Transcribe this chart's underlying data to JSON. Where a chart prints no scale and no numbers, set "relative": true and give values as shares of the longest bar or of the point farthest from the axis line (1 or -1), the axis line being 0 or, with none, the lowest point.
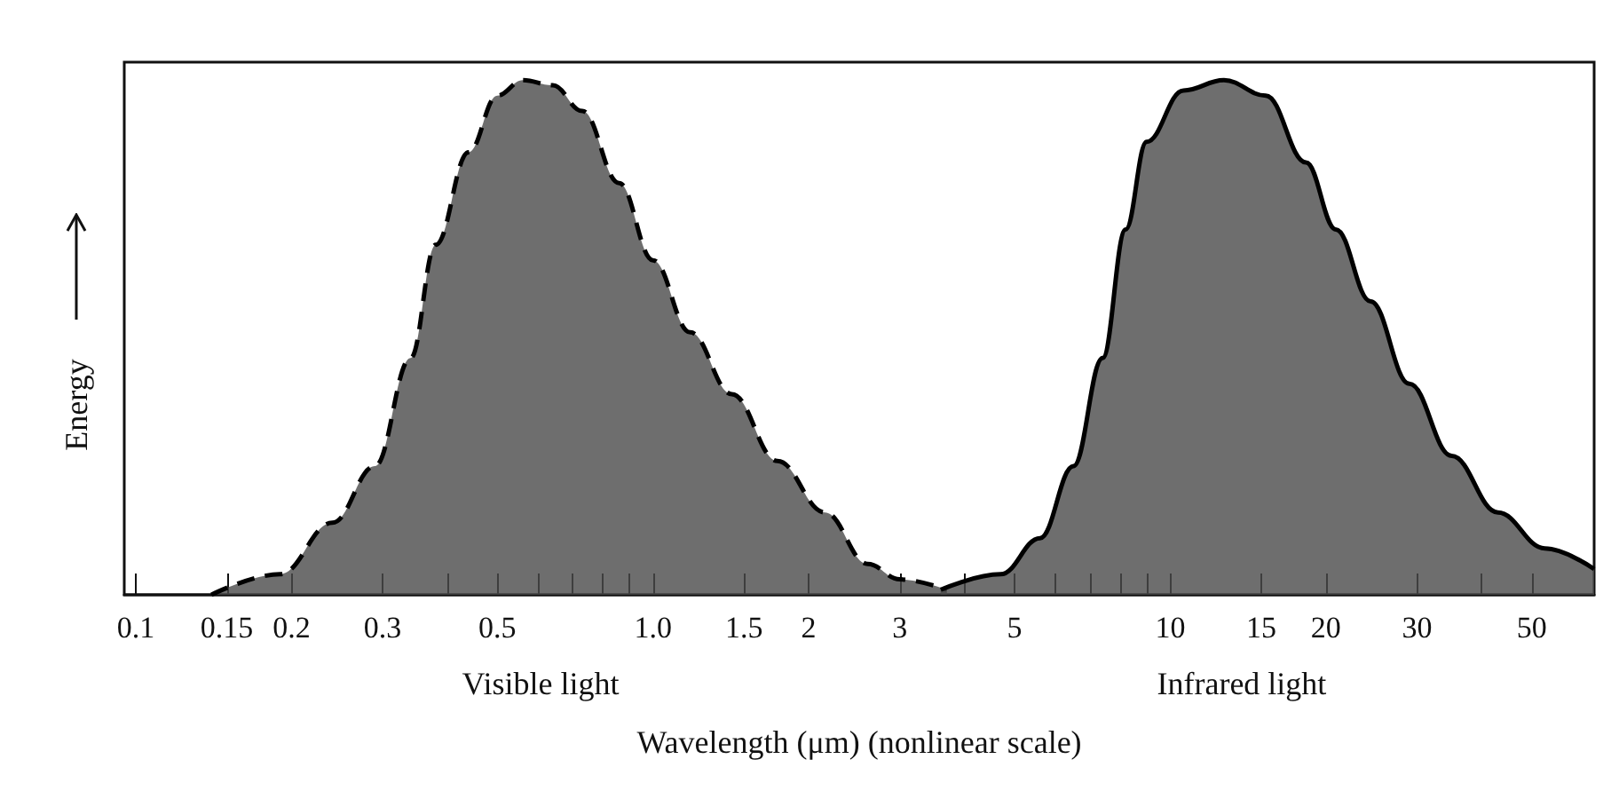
{
  "chart_data": {
    "type": "area",
    "relative": true,
    "xlabel": "Wavelength (μm) (nonlinear scale)",
    "ylabel": "Energy",
    "log": "x",
    "xlim": [
      0.095,
      66
    ],
    "xticks": [
      0.1,
      0.15,
      0.2,
      0.3,
      {
        "value": 0.4,
        "label": null
      },
      0.5,
      {
        "value": 0.6,
        "label": null
      },
      {
        "value": 0.7,
        "label": null
      },
      {
        "value": 0.8,
        "label": null
      },
      {
        "value": 0.9,
        "label": null
      },
      {
        "value": 1,
        "label": "1.0"
      },
      1.5,
      2,
      3,
      {
        "value": 4,
        "label": null
      },
      5,
      {
        "value": 6,
        "label": null
      },
      {
        "value": 7,
        "label": null
      },
      {
        "value": 8,
        "label": null
      },
      {
        "value": 9,
        "label": null
      },
      10,
      15,
      20,
      30,
      {
        "value": 40,
        "label": null
      },
      50
    ],
    "grid": false,
    "marker": "none",
    "annotations": [
      "Visible light",
      "Infrared light"
    ],
    "series": [
      {
        "color": "#4a4a4a",
        "line_style": "dashed",
        "x": [
          0.14,
          0.19,
          0.24,
          0.29,
          0.34,
          0.38,
          0.44,
          0.5,
          0.56,
          0.64,
          0.73,
          0.86,
          1.0,
          1.18,
          1.42,
          1.74,
          2.15,
          2.6,
          3.0,
          3.7
        ],
        "values": [
          0,
          0.04,
          0.14,
          0.25,
          0.46,
          0.68,
          0.86,
          0.97,
          1,
          0.99,
          0.94,
          0.8,
          0.65,
          0.51,
          0.39,
          0.26,
          0.16,
          0.06,
          0.03,
          0.01
        ]
      },
      {
        "color": "#4a4a4a",
        "line_style": "solid",
        "x": [
          3.6,
          4.7,
          5.6,
          6.5,
          7.4,
          8.2,
          9.0,
          10.6,
          12.7,
          15.3,
          18.3,
          20.9,
          24.4,
          29,
          35,
          43,
          53,
          66
        ],
        "values": [
          0.01,
          0.04,
          0.11,
          0.25,
          0.46,
          0.71,
          0.88,
          0.98,
          1,
          0.97,
          0.84,
          0.71,
          0.57,
          0.41,
          0.27,
          0.16,
          0.09,
          0.05
        ]
      }
    ]
  }
}
